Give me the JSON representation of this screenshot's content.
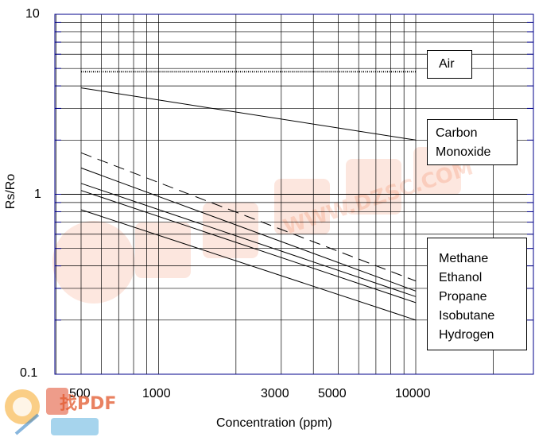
{
  "chart_data": {
    "type": "line",
    "xlabel": "Concentration (ppm)",
    "ylabel": "Rs/Ro",
    "xscale": "log",
    "yscale": "log",
    "xlim": [
      300,
      20000
    ],
    "ylim": [
      0.1,
      10
    ],
    "xticks": [
      "500",
      "1000",
      "3000",
      "5000",
      "10000"
    ],
    "yticks": [
      "10",
      "1",
      "0.1"
    ],
    "grid": true,
    "series": [
      {
        "name": "Air",
        "style": "dotted",
        "points": [
          [
            500,
            4.8
          ],
          [
            10000,
            4.8
          ]
        ]
      },
      {
        "name": "Carbon Monoxide",
        "style": "solid",
        "points": [
          [
            500,
            3.9
          ],
          [
            10000,
            2.0
          ]
        ]
      },
      {
        "name": "Methane",
        "style": "dashed",
        "points": [
          [
            500,
            1.7
          ],
          [
            10000,
            0.33
          ]
        ]
      },
      {
        "name": "Ethanol",
        "style": "solid",
        "points": [
          [
            500,
            1.4
          ],
          [
            10000,
            0.29
          ]
        ]
      },
      {
        "name": "Propane",
        "style": "solid",
        "points": [
          [
            500,
            1.15
          ],
          [
            10000,
            0.27
          ]
        ]
      },
      {
        "name": "Isobutane",
        "style": "solid",
        "points": [
          [
            500,
            1.05
          ],
          [
            10000,
            0.25
          ]
        ]
      },
      {
        "name": "Hydrogen",
        "style": "solid",
        "points": [
          [
            500,
            0.82
          ],
          [
            10000,
            0.2
          ]
        ]
      }
    ],
    "legend": [
      {
        "id": "air",
        "lines": [
          "Air"
        ]
      },
      {
        "id": "co",
        "lines": [
          "Carbon",
          "Monoxide"
        ]
      },
      {
        "id": "group",
        "lines": [
          "Methane",
          "Ethanol",
          "Propane",
          "Isobutane",
          "Hydrogen"
        ]
      }
    ]
  },
  "watermark": {
    "logo_text": "找PDF",
    "site_text": "WWW.DZSC.COM"
  },
  "colors": {
    "grid": "#000000",
    "frame": "#00008b",
    "watermark": "#f26b3a"
  }
}
